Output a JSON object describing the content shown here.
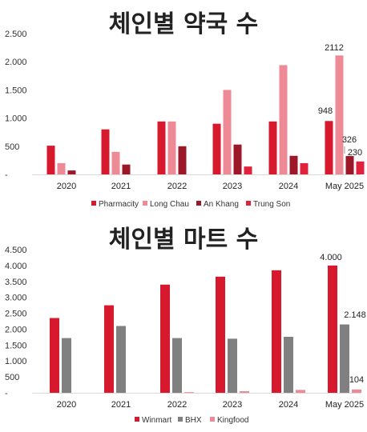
{
  "chart_data": [
    {
      "type": "bar",
      "title": "체인별 약국 수",
      "categories": [
        "2020",
        "2021",
        "2022",
        "2023",
        "2024",
        "May 2025"
      ],
      "ylim": [
        0,
        2500
      ],
      "yticks": [
        "2.500",
        "2.000",
        "1.500",
        "1.000",
        "500",
        "-"
      ],
      "ytick_values": [
        2500,
        2000,
        1500,
        1000,
        500,
        0
      ],
      "legend_position": "bottom",
      "series": [
        {
          "name": "Pharmacity",
          "color": "#d7192d",
          "values": [
            510,
            800,
            940,
            900,
            940,
            948
          ]
        },
        {
          "name": "Long Chau",
          "color": "#ee8a96",
          "values": [
            200,
            400,
            940,
            1500,
            1940,
            2112
          ]
        },
        {
          "name": "An Khang",
          "color": "#9c1728",
          "values": [
            70,
            175,
            500,
            530,
            330,
            326
          ]
        },
        {
          "name": "Trung Son",
          "color": "#e0223d",
          "values": [
            0,
            0,
            0,
            140,
            200,
            230
          ]
        }
      ],
      "data_labels": [
        {
          "series": 0,
          "index": 5,
          "text": "948"
        },
        {
          "series": 1,
          "index": 5,
          "text": "2112"
        },
        {
          "series": 2,
          "index": 5,
          "text": "326"
        },
        {
          "series": 3,
          "index": 5,
          "text": "230"
        }
      ]
    },
    {
      "type": "bar",
      "title": "체인별 마트 수",
      "categories": [
        "2020",
        "2021",
        "2022",
        "2023",
        "2024",
        "May 2025"
      ],
      "ylim": [
        0,
        4500
      ],
      "yticks": [
        "4.500",
        "4.000",
        "3.500",
        "3.000",
        "2.500",
        "2.000",
        "1.500",
        "1.000",
        "500",
        "-"
      ],
      "ytick_values": [
        4500,
        4000,
        3500,
        3000,
        2500,
        2000,
        1500,
        1000,
        500,
        0
      ],
      "legend_position": "bottom",
      "series": [
        {
          "name": "Winmart",
          "color": "#d7192d",
          "values": [
            2350,
            2750,
            3400,
            3650,
            3850,
            4000
          ]
        },
        {
          "name": "BHX",
          "color": "#808080",
          "values": [
            1720,
            2100,
            1720,
            1700,
            1760,
            2148
          ]
        },
        {
          "name": "Kingfood",
          "color": "#ee8a96",
          "values": [
            0,
            0,
            20,
            50,
            90,
            104
          ]
        }
      ],
      "data_labels": [
        {
          "series": 0,
          "index": 5,
          "text": "4.000"
        },
        {
          "series": 1,
          "index": 5,
          "text": "2.148"
        },
        {
          "series": 2,
          "index": 5,
          "text": "104"
        }
      ]
    }
  ]
}
